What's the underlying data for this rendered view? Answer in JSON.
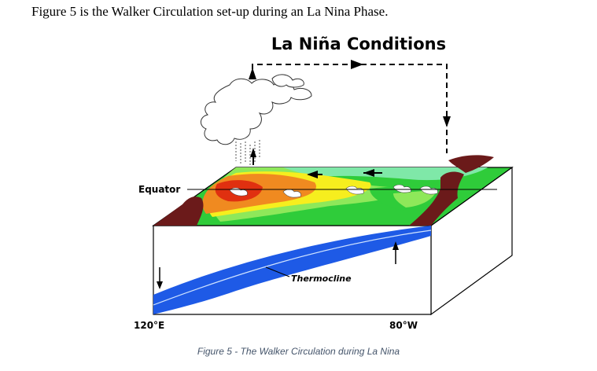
{
  "intro_text": "Figure 5 is the Walker Circulation set-up during an La Nina Phase.",
  "diagram": {
    "title": "La Niña Conditions",
    "equator_label": "Equator",
    "thermocline_label": "Thermocline",
    "left_longitude": "120°E",
    "right_longitude": "80°W"
  },
  "caption": "Figure 5 - The Walker Circulation during La Nina",
  "colors": {
    "land": "#6b1a1a",
    "warm_pool": "#e03010",
    "orange": "#f08a20",
    "yellow": "#f6ee1e",
    "light_green": "#8ee85a",
    "green": "#2fcc3a",
    "cool_green": "#7fe8a8",
    "deep_water": "#1e5ae6",
    "ocean_box": "#ffffff"
  },
  "icons": [
    "cloud-icon",
    "up-arrow-icon",
    "down-arrow-icon",
    "left-arrow-icon",
    "right-arrow-icon"
  ]
}
